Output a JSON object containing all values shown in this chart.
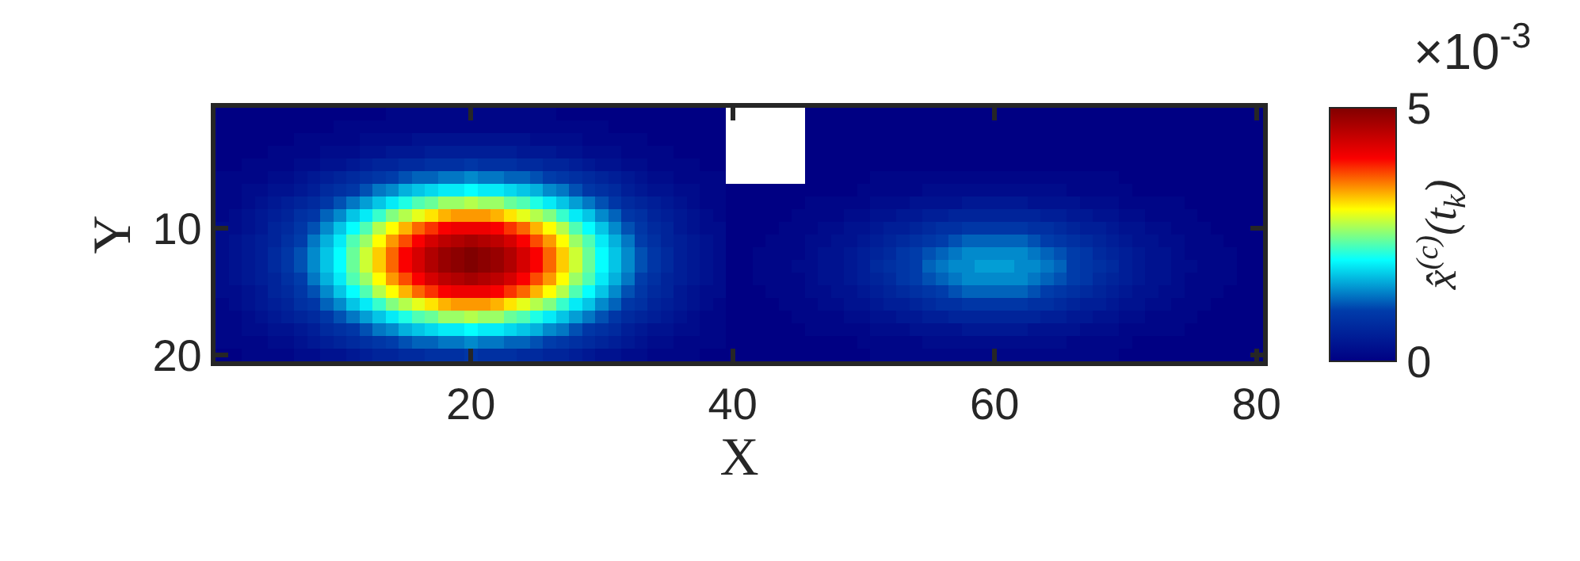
{
  "chart_data": {
    "type": "heatmap",
    "xlabel": "X",
    "ylabel": "Y",
    "clabel": "x̂$^{(c)}$(t$_{k}$)",
    "annotations": [
      "×10$^{-3}$"
    ],
    "xlim": [
      0.5,
      80.5
    ],
    "ylim": [
      20.5,
      0.5
    ],
    "xticks": [
      20,
      40,
      60,
      80
    ],
    "yticks": [
      10,
      20
    ],
    "clim": [
      0,
      5
    ],
    "cticks": [
      0,
      5
    ],
    "cells": [
      [
        0,
        0,
        0,
        0,
        0,
        0,
        0,
        0,
        0,
        0,
        0,
        0,
        0,
        0.1,
        0.1,
        0.1,
        0.1,
        0.1,
        0.1,
        0.1,
        0.1,
        0.1,
        0.1,
        0.1,
        0.1,
        0.1,
        0,
        0,
        0,
        0,
        0,
        0,
        0,
        0,
        0,
        0,
        0,
        0,
        0,
        null,
        null,
        null,
        null,
        null,
        null,
        0,
        0,
        0,
        0,
        0,
        0,
        0,
        0,
        0,
        0,
        0,
        0,
        0,
        0,
        0,
        0,
        0,
        0,
        0,
        0,
        0,
        0,
        0,
        0,
        0,
        0,
        0,
        0,
        0,
        0,
        0,
        0,
        0,
        0,
        0
      ],
      [
        0,
        0,
        0,
        0,
        0,
        0,
        0,
        0,
        0,
        0.1,
        0.1,
        0.1,
        0.1,
        0.1,
        0.1,
        0.1,
        0.1,
        0.1,
        0.1,
        0.1,
        0.1,
        0.1,
        0.1,
        0.1,
        0.1,
        0.1,
        0.1,
        0.1,
        0.1,
        0.1,
        0,
        0,
        0,
        0,
        0,
        0,
        0,
        0,
        0,
        null,
        null,
        null,
        null,
        null,
        null,
        0,
        0,
        0,
        0,
        0,
        0,
        0,
        0,
        0,
        0,
        0,
        0,
        0,
        0,
        0,
        0,
        0,
        0,
        0,
        0,
        0,
        0,
        0,
        0,
        0,
        0,
        0,
        0,
        0,
        0,
        0,
        0,
        0,
        0,
        0
      ],
      [
        0,
        0,
        0,
        0,
        0,
        0,
        0.1,
        0.1,
        0.1,
        0.1,
        0.1,
        0.2,
        0.2,
        0.2,
        0.2,
        0.3,
        0.3,
        0.3,
        0.3,
        0.3,
        0.3,
        0.3,
        0.3,
        0.3,
        0.2,
        0.2,
        0.2,
        0.2,
        0.1,
        0.1,
        0.1,
        0.1,
        0.1,
        0,
        0,
        0,
        0,
        0,
        0,
        null,
        null,
        null,
        null,
        null,
        null,
        0,
        0,
        0,
        0,
        0,
        0,
        0,
        0,
        0,
        0,
        0,
        0,
        0,
        0,
        0,
        0,
        0,
        0,
        0,
        0,
        0,
        0,
        0,
        0,
        0,
        0,
        0,
        0,
        0,
        0,
        0,
        0,
        0,
        0,
        0
      ],
      [
        0,
        0,
        0,
        0,
        0.1,
        0.1,
        0.1,
        0.1,
        0.2,
        0.2,
        0.2,
        0.3,
        0.3,
        0.4,
        0.4,
        0.4,
        0.5,
        0.5,
        0.5,
        0.5,
        0.5,
        0.5,
        0.5,
        0.4,
        0.4,
        0.4,
        0.3,
        0.3,
        0.2,
        0.2,
        0.2,
        0.1,
        0.1,
        0.1,
        0.1,
        0,
        0,
        0,
        0,
        null,
        null,
        null,
        null,
        null,
        null,
        0,
        0,
        0,
        0,
        0,
        0,
        0,
        0,
        0,
        0,
        0,
        0,
        0,
        0,
        0,
        0,
        0,
        0,
        0,
        0,
        0,
        0,
        0,
        0,
        0,
        0,
        0,
        0,
        0,
        0,
        0,
        0,
        0,
        0,
        0
      ],
      [
        0,
        0,
        0.1,
        0.1,
        0.1,
        0.1,
        0.2,
        0.2,
        0.3,
        0.3,
        0.4,
        0.5,
        0.6,
        0.6,
        0.7,
        0.7,
        0.8,
        0.8,
        0.8,
        0.9,
        0.8,
        0.8,
        0.8,
        0.7,
        0.7,
        0.6,
        0.6,
        0.5,
        0.4,
        0.3,
        0.3,
        0.2,
        0.2,
        0.1,
        0.1,
        0.1,
        0.1,
        0,
        0,
        null,
        null,
        null,
        null,
        null,
        null,
        0,
        0,
        0,
        0,
        0,
        0,
        0,
        0,
        0,
        0,
        0,
        0,
        0,
        0,
        0,
        0,
        0,
        0,
        0,
        0,
        0,
        0,
        0,
        0,
        0,
        0,
        0,
        0,
        0,
        0,
        0,
        0,
        0,
        0,
        0
      ],
      [
        0.1,
        0.1,
        0.1,
        0.1,
        0.2,
        0.2,
        0.3,
        0.4,
        0.5,
        0.6,
        0.7,
        0.8,
        0.9,
        1.0,
        1.1,
        1.2,
        1.2,
        1.3,
        1.3,
        1.4,
        1.3,
        1.3,
        1.2,
        1.2,
        1.1,
        1.0,
        0.9,
        0.8,
        0.7,
        0.6,
        0.5,
        0.4,
        0.3,
        0.2,
        0.2,
        0.1,
        0.1,
        0.1,
        0.1,
        null,
        null,
        null,
        null,
        null,
        null,
        0,
        0,
        0,
        0,
        0,
        0.1,
        0.1,
        0.1,
        0.1,
        0.1,
        0.1,
        0.1,
        0.1,
        0.1,
        0.1,
        0.1,
        0.1,
        0.1,
        0.1,
        0.1,
        0.1,
        0.1,
        0.1,
        0.1,
        0,
        0,
        0,
        0,
        0,
        0,
        0,
        0,
        0,
        0,
        0
      ],
      [
        0.1,
        0.1,
        0.2,
        0.2,
        0.3,
        0.3,
        0.4,
        0.5,
        0.7,
        0.8,
        0.9,
        1.1,
        1.3,
        1.4,
        1.6,
        1.7,
        1.8,
        1.9,
        1.9,
        2.0,
        1.9,
        1.9,
        1.8,
        1.7,
        1.6,
        1.4,
        1.3,
        1.1,
        0.9,
        0.8,
        0.7,
        0.5,
        0.4,
        0.3,
        0.3,
        0.2,
        0.2,
        0.1,
        0.1,
        0,
        0,
        0,
        0,
        0,
        0,
        0,
        0,
        0,
        0,
        0.1,
        0.1,
        0.1,
        0.1,
        0.1,
        0.2,
        0.2,
        0.2,
        0.2,
        0.2,
        0.2,
        0.2,
        0.2,
        0.2,
        0.2,
        0.2,
        0.1,
        0.1,
        0.1,
        0.1,
        0.1,
        0,
        0,
        0,
        0,
        0,
        0,
        0,
        0,
        0,
        0
      ],
      [
        0.1,
        0.1,
        0.2,
        0.3,
        0.4,
        0.5,
        0.6,
        0.7,
        0.9,
        1.1,
        1.3,
        1.5,
        1.7,
        1.9,
        2.1,
        2.3,
        2.4,
        2.6,
        2.6,
        2.7,
        2.6,
        2.6,
        2.4,
        2.3,
        2.1,
        1.9,
        1.7,
        1.5,
        1.3,
        1.1,
        0.9,
        0.7,
        0.6,
        0.5,
        0.4,
        0.3,
        0.2,
        0.1,
        0.1,
        0,
        0,
        0,
        0,
        0,
        0,
        0.1,
        0.1,
        0.1,
        0.1,
        0.1,
        0.2,
        0.2,
        0.2,
        0.3,
        0.3,
        0.3,
        0.3,
        0.4,
        0.4,
        0.4,
        0.4,
        0.4,
        0.3,
        0.3,
        0.3,
        0.3,
        0.2,
        0.2,
        0.2,
        0.1,
        0.1,
        0.1,
        0.1,
        0.1,
        0,
        0,
        0,
        0,
        0,
        0
      ],
      [
        0.1,
        0.2,
        0.3,
        0.4,
        0.5,
        0.6,
        0.8,
        0.9,
        1.2,
        1.4,
        1.7,
        1.9,
        2.2,
        2.5,
        2.7,
        2.9,
        3.1,
        3.3,
        3.4,
        3.4,
        3.4,
        3.3,
        3.1,
        2.9,
        2.7,
        2.5,
        2.2,
        1.9,
        1.7,
        1.4,
        1.2,
        0.9,
        0.8,
        0.6,
        0.5,
        0.4,
        0.3,
        0.2,
        0.1,
        0,
        0,
        0,
        0,
        0,
        0.1,
        0.1,
        0.1,
        0.1,
        0.2,
        0.2,
        0.3,
        0.3,
        0.4,
        0.4,
        0.5,
        0.5,
        0.6,
        0.6,
        0.6,
        0.6,
        0.6,
        0.6,
        0.6,
        0.5,
        0.5,
        0.4,
        0.4,
        0.3,
        0.3,
        0.2,
        0.2,
        0.1,
        0.1,
        0.1,
        0.1,
        0,
        0,
        0,
        0,
        0
      ],
      [
        0.2,
        0.2,
        0.3,
        0.4,
        0.6,
        0.7,
        0.9,
        1.1,
        1.4,
        1.7,
        2.0,
        2.3,
        2.7,
        3.0,
        3.3,
        3.6,
        3.8,
        4.0,
        4.1,
        4.1,
        4.1,
        4.0,
        3.8,
        3.6,
        3.3,
        3.0,
        2.7,
        2.3,
        2.0,
        1.7,
        1.4,
        1.1,
        0.9,
        0.7,
        0.6,
        0.4,
        0.3,
        0.2,
        0.2,
        0,
        0,
        0,
        0,
        0.1,
        0.1,
        0.1,
        0.2,
        0.2,
        0.3,
        0.3,
        0.4,
        0.5,
        0.5,
        0.6,
        0.7,
        0.8,
        0.8,
        0.9,
        0.9,
        0.9,
        0.9,
        0.9,
        0.8,
        0.8,
        0.7,
        0.6,
        0.5,
        0.5,
        0.4,
        0.3,
        0.3,
        0.2,
        0.2,
        0.1,
        0.1,
        0.1,
        0,
        0,
        0,
        0
      ],
      [
        0.2,
        0.3,
        0.4,
        0.5,
        0.6,
        0.8,
        1.0,
        1.3,
        1.6,
        1.9,
        2.3,
        2.6,
        3.0,
        3.4,
        3.7,
        4.0,
        4.3,
        4.5,
        4.6,
        4.7,
        4.6,
        4.5,
        4.3,
        4.0,
        3.7,
        3.4,
        3.0,
        2.6,
        2.3,
        1.9,
        1.6,
        1.3,
        1.0,
        0.8,
        0.6,
        0.5,
        0.4,
        0.3,
        0.2,
        0,
        0,
        0,
        0.1,
        0.1,
        0.1,
        0.2,
        0.2,
        0.3,
        0.3,
        0.4,
        0.5,
        0.6,
        0.7,
        0.8,
        0.9,
        1.0,
        1.1,
        1.2,
        1.2,
        1.2,
        1.2,
        1.2,
        1.1,
        1.0,
        0.9,
        0.8,
        0.7,
        0.6,
        0.5,
        0.4,
        0.3,
        0.3,
        0.2,
        0.2,
        0.1,
        0.1,
        0.1,
        0,
        0,
        0
      ],
      [
        0.2,
        0.3,
        0.4,
        0.5,
        0.7,
        0.9,
        1.1,
        1.4,
        1.7,
        2.0,
        2.4,
        2.8,
        3.2,
        3.6,
        4.0,
        4.3,
        4.6,
        4.8,
        4.9,
        5.0,
        4.9,
        4.8,
        4.6,
        4.3,
        4.0,
        3.6,
        3.2,
        2.8,
        2.4,
        2.0,
        1.7,
        1.4,
        1.1,
        0.9,
        0.7,
        0.5,
        0.4,
        0.3,
        0.2,
        0,
        0,
        0.1,
        0.1,
        0.1,
        0.1,
        0.2,
        0.3,
        0.3,
        0.4,
        0.5,
        0.6,
        0.7,
        0.9,
        1.0,
        1.1,
        1.2,
        1.3,
        1.4,
        1.4,
        1.4,
        1.4,
        1.4,
        1.3,
        1.2,
        1.1,
        1.0,
        0.9,
        0.7,
        0.6,
        0.5,
        0.4,
        0.3,
        0.3,
        0.2,
        0.1,
        0.1,
        0.1,
        0.1,
        0,
        0
      ],
      [
        0.2,
        0.3,
        0.4,
        0.5,
        0.7,
        0.9,
        1.1,
        1.4,
        1.7,
        2.0,
        2.4,
        2.8,
        3.2,
        3.6,
        4.0,
        4.3,
        4.6,
        4.8,
        4.9,
        5.0,
        4.9,
        4.8,
        4.6,
        4.3,
        4.0,
        3.6,
        3.2,
        2.8,
        2.4,
        2.0,
        1.7,
        1.4,
        1.1,
        0.9,
        0.7,
        0.5,
        0.4,
        0.3,
        0.2,
        0,
        0,
        0.1,
        0.1,
        0.1,
        0.2,
        0.2,
        0.3,
        0.3,
        0.4,
        0.5,
        0.7,
        0.8,
        0.9,
        1.0,
        1.2,
        1.3,
        1.4,
        1.4,
        1.5,
        1.5,
        1.5,
        1.4,
        1.4,
        1.3,
        1.2,
        1.0,
        0.9,
        0.8,
        0.7,
        0.5,
        0.4,
        0.3,
        0.3,
        0.2,
        0.2,
        0.1,
        0.1,
        0.1,
        0,
        0
      ],
      [
        0.2,
        0.3,
        0.4,
        0.5,
        0.6,
        0.8,
        1.0,
        1.3,
        1.6,
        1.9,
        2.3,
        2.6,
        3.0,
        3.4,
        3.7,
        4.0,
        4.3,
        4.5,
        4.6,
        4.7,
        4.6,
        4.5,
        4.3,
        4.0,
        3.7,
        3.4,
        3.0,
        2.6,
        2.3,
        1.9,
        1.6,
        1.3,
        1.0,
        0.8,
        0.6,
        0.5,
        0.4,
        0.3,
        0.2,
        0,
        0,
        0.1,
        0.1,
        0.1,
        0.1,
        0.2,
        0.3,
        0.3,
        0.4,
        0.5,
        0.6,
        0.7,
        0.9,
        1.0,
        1.1,
        1.2,
        1.3,
        1.4,
        1.4,
        1.4,
        1.4,
        1.4,
        1.3,
        1.2,
        1.1,
        1.0,
        0.9,
        0.7,
        0.6,
        0.5,
        0.4,
        0.3,
        0.3,
        0.2,
        0.1,
        0.1,
        0.1,
        0.1,
        0,
        0
      ],
      [
        0.2,
        0.2,
        0.3,
        0.4,
        0.6,
        0.7,
        0.9,
        1.1,
        1.4,
        1.7,
        2.0,
        2.3,
        2.7,
        3.0,
        3.3,
        3.6,
        3.8,
        4.0,
        4.1,
        4.1,
        4.1,
        4.0,
        3.8,
        3.6,
        3.3,
        3.0,
        2.7,
        2.3,
        2.0,
        1.7,
        1.4,
        1.1,
        0.9,
        0.7,
        0.6,
        0.4,
        0.3,
        0.2,
        0.2,
        0,
        0,
        0,
        0.1,
        0.1,
        0.1,
        0.2,
        0.2,
        0.3,
        0.3,
        0.4,
        0.5,
        0.6,
        0.7,
        0.8,
        0.9,
        1.0,
        1.1,
        1.2,
        1.2,
        1.2,
        1.2,
        1.2,
        1.1,
        1.0,
        0.9,
        0.8,
        0.7,
        0.6,
        0.5,
        0.4,
        0.3,
        0.3,
        0.2,
        0.2,
        0.1,
        0.1,
        0.1,
        0,
        0,
        0
      ],
      [
        0.1,
        0.2,
        0.3,
        0.4,
        0.5,
        0.6,
        0.8,
        0.9,
        1.2,
        1.4,
        1.7,
        1.9,
        2.2,
        2.5,
        2.7,
        2.9,
        3.1,
        3.3,
        3.4,
        3.4,
        3.4,
        3.3,
        3.1,
        2.9,
        2.7,
        2.5,
        2.2,
        1.9,
        1.7,
        1.4,
        1.2,
        0.9,
        0.8,
        0.6,
        0.5,
        0.4,
        0.3,
        0.2,
        0.1,
        0,
        0,
        0,
        0,
        0.1,
        0.1,
        0.1,
        0.2,
        0.2,
        0.3,
        0.3,
        0.4,
        0.5,
        0.5,
        0.6,
        0.7,
        0.8,
        0.8,
        0.9,
        0.9,
        0.9,
        0.9,
        0.9,
        0.8,
        0.8,
        0.7,
        0.6,
        0.5,
        0.5,
        0.4,
        0.3,
        0.3,
        0.2,
        0.2,
        0.1,
        0.1,
        0.1,
        0,
        0,
        0,
        0
      ],
      [
        0.1,
        0.1,
        0.2,
        0.3,
        0.4,
        0.5,
        0.6,
        0.7,
        0.9,
        1.1,
        1.3,
        1.5,
        1.7,
        1.9,
        2.1,
        2.3,
        2.4,
        2.6,
        2.6,
        2.7,
        2.6,
        2.6,
        2.4,
        2.3,
        2.1,
        1.9,
        1.7,
        1.5,
        1.3,
        1.1,
        0.9,
        0.7,
        0.6,
        0.5,
        0.4,
        0.3,
        0.2,
        0.1,
        0.1,
        0,
        0,
        0,
        0,
        0,
        0.1,
        0.1,
        0.1,
        0.1,
        0.2,
        0.2,
        0.3,
        0.3,
        0.4,
        0.4,
        0.5,
        0.5,
        0.6,
        0.6,
        0.6,
        0.6,
        0.6,
        0.6,
        0.6,
        0.5,
        0.5,
        0.4,
        0.4,
        0.3,
        0.3,
        0.2,
        0.2,
        0.1,
        0.1,
        0.1,
        0.1,
        0,
        0,
        0,
        0,
        0
      ],
      [
        0.1,
        0.1,
        0.2,
        0.2,
        0.3,
        0.3,
        0.4,
        0.5,
        0.7,
        0.8,
        0.9,
        1.1,
        1.3,
        1.4,
        1.6,
        1.7,
        1.8,
        1.9,
        1.9,
        2.0,
        1.9,
        1.9,
        1.8,
        1.7,
        1.6,
        1.4,
        1.3,
        1.1,
        0.9,
        0.8,
        0.7,
        0.5,
        0.4,
        0.3,
        0.3,
        0.2,
        0.2,
        0.1,
        0.1,
        0,
        0,
        0,
        0,
        0,
        0,
        0.1,
        0.1,
        0.1,
        0.1,
        0.1,
        0.2,
        0.2,
        0.2,
        0.3,
        0.3,
        0.3,
        0.3,
        0.4,
        0.4,
        0.4,
        0.4,
        0.4,
        0.3,
        0.3,
        0.3,
        0.3,
        0.2,
        0.2,
        0.2,
        0.1,
        0.1,
        0.1,
        0.1,
        0.1,
        0,
        0,
        0,
        0,
        0,
        0
      ],
      [
        0.1,
        0.1,
        0.1,
        0.1,
        0.2,
        0.2,
        0.3,
        0.4,
        0.5,
        0.6,
        0.7,
        0.8,
        0.9,
        1.0,
        1.1,
        1.2,
        1.2,
        1.3,
        1.3,
        1.4,
        1.3,
        1.3,
        1.2,
        1.2,
        1.1,
        1.0,
        0.9,
        0.8,
        0.7,
        0.6,
        0.5,
        0.4,
        0.3,
        0.2,
        0.2,
        0.1,
        0.1,
        0.1,
        0.1,
        0,
        0,
        0,
        0,
        0,
        0,
        0,
        0,
        0,
        0,
        0.1,
        0.1,
        0.1,
        0.1,
        0.1,
        0.2,
        0.2,
        0.2,
        0.2,
        0.2,
        0.2,
        0.2,
        0.2,
        0.2,
        0.2,
        0.2,
        0.1,
        0.1,
        0.1,
        0.1,
        0.1,
        0,
        0,
        0,
        0,
        0,
        0,
        0,
        0,
        0,
        0
      ],
      [
        0,
        0,
        0.1,
        0.1,
        0.1,
        0.1,
        0.2,
        0.2,
        0.3,
        0.3,
        0.4,
        0.5,
        0.6,
        0.6,
        0.7,
        0.7,
        0.8,
        0.8,
        0.8,
        0.9,
        0.8,
        0.8,
        0.8,
        0.7,
        0.7,
        0.6,
        0.6,
        0.5,
        0.4,
        0.3,
        0.3,
        0.2,
        0.2,
        0.1,
        0.1,
        0.1,
        0.1,
        0,
        0,
        0,
        0,
        0,
        0,
        0,
        0,
        0,
        0,
        0,
        0,
        0,
        0.1,
        0.1,
        0.1,
        0.1,
        0.1,
        0.1,
        0.1,
        0.1,
        0.1,
        0.1,
        0.1,
        0.1,
        0.1,
        0.1,
        0.1,
        0.1,
        0.1,
        0.1,
        0.1,
        0,
        0,
        0,
        0,
        0,
        0,
        0,
        0,
        0,
        0,
        0
      ]
    ]
  }
}
